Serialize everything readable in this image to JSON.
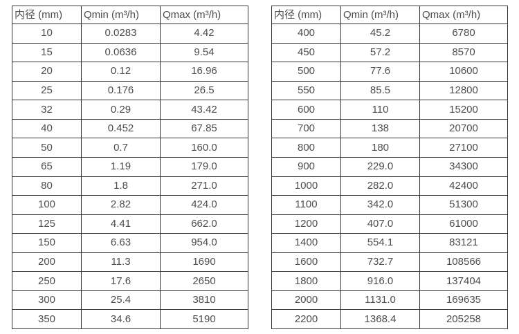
{
  "page": {
    "background_color": "#ffffff",
    "border_color": "#333333",
    "text_color": "#4d4d4d"
  },
  "tables": [
    {
      "name": "flow-rate-table-small-diameters",
      "headers": [
        "内径 (mm)",
        "Qmin (m³/h)",
        "Qmax (m³/h)"
      ],
      "rows": [
        [
          "10",
          "0.0283",
          "4.42"
        ],
        [
          "15",
          "0.0636",
          "9.54"
        ],
        [
          "20",
          "0.12",
          "16.96"
        ],
        [
          "25",
          "0.176",
          "26.5"
        ],
        [
          "32",
          "0.29",
          "43.42"
        ],
        [
          "40",
          "0.452",
          "67.85"
        ],
        [
          "50",
          "0.7",
          "160.0"
        ],
        [
          "65",
          "1.19",
          "179.0"
        ],
        [
          "80",
          "1.8",
          "271.0"
        ],
        [
          "100",
          "2.82",
          "424.0"
        ],
        [
          "125",
          "4.41",
          "662.0"
        ],
        [
          "150",
          "6.63",
          "954.0"
        ],
        [
          "200",
          "11.3",
          "1690"
        ],
        [
          "250",
          "17.6",
          "2650"
        ],
        [
          "300",
          "25.4",
          "3810"
        ],
        [
          "350",
          "34.6",
          "5190"
        ]
      ]
    },
    {
      "name": "flow-rate-table-large-diameters",
      "headers": [
        "内径 (mm)",
        "Qmin (m³/h)",
        "Qmax (m³/h)"
      ],
      "rows": [
        [
          "400",
          "45.2",
          "6780"
        ],
        [
          "450",
          "57.2",
          "8570"
        ],
        [
          "500",
          "77.6",
          "10600"
        ],
        [
          "550",
          "85.5",
          "12800"
        ],
        [
          "600",
          "110",
          "15200"
        ],
        [
          "700",
          "138",
          "20700"
        ],
        [
          "800",
          "180",
          "27100"
        ],
        [
          "900",
          "229.0",
          "34300"
        ],
        [
          "1000",
          "282.0",
          "42400"
        ],
        [
          "1100",
          "342.0",
          "51300"
        ],
        [
          "1200",
          "407.0",
          "61000"
        ],
        [
          "1400",
          "554.1",
          "83121"
        ],
        [
          "1600",
          "732.7",
          "108566"
        ],
        [
          "1800",
          "916.0",
          "137404"
        ],
        [
          "2000",
          "1131.0",
          "169635"
        ],
        [
          "2200",
          "1368.4",
          "205258"
        ]
      ]
    }
  ]
}
